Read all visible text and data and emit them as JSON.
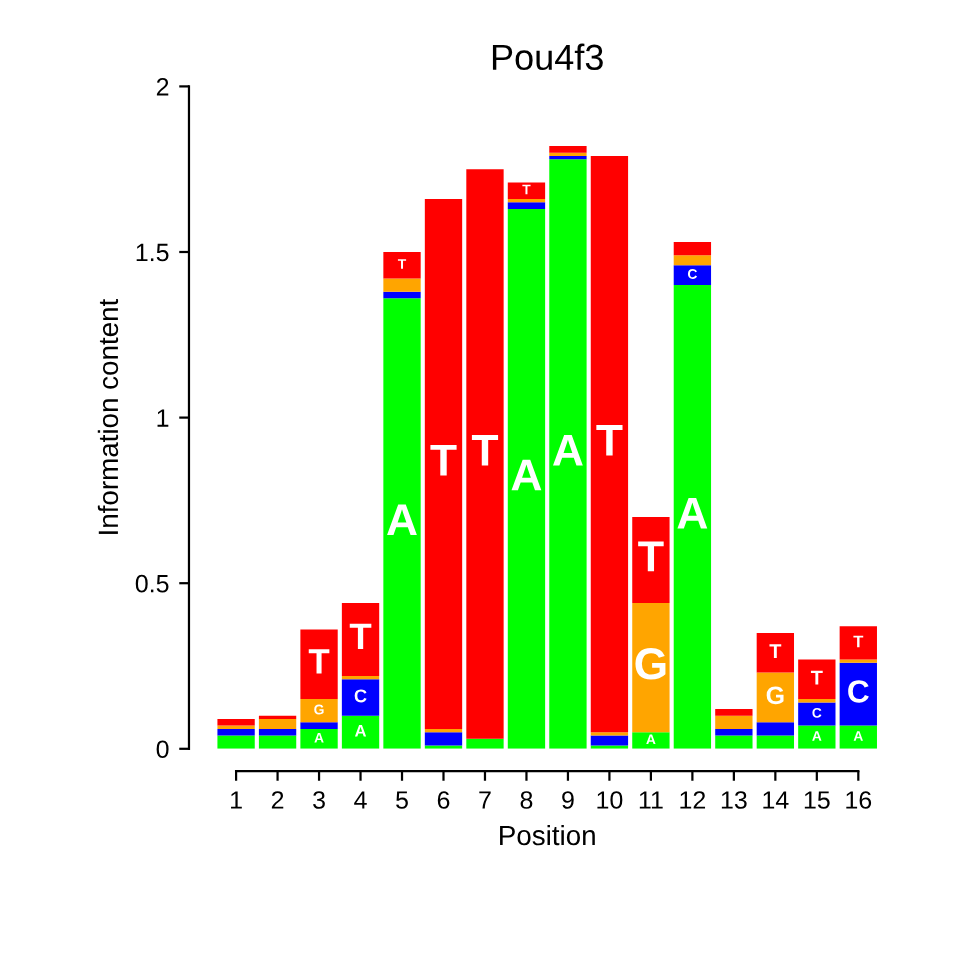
{
  "chart_data": {
    "type": "bar",
    "stacked": true,
    "title": "Pou4f3",
    "xlabel": "Position",
    "ylabel": "Information content",
    "categories": [
      "1",
      "2",
      "3",
      "4",
      "5",
      "6",
      "7",
      "8",
      "9",
      "10",
      "11",
      "12",
      "13",
      "14",
      "15",
      "16"
    ],
    "series": [
      {
        "name": "A",
        "color": "#00ff00",
        "values": [
          0.04,
          0.04,
          0.06,
          0.1,
          1.36,
          0.01,
          0.03,
          1.63,
          1.78,
          0.01,
          0.05,
          1.4,
          0.04,
          0.04,
          0.07,
          0.07
        ]
      },
      {
        "name": "C",
        "color": "#0000ff",
        "values": [
          0.02,
          0.02,
          0.02,
          0.11,
          0.02,
          0.04,
          0.0,
          0.02,
          0.01,
          0.03,
          0.0,
          0.06,
          0.02,
          0.04,
          0.07,
          0.19
        ]
      },
      {
        "name": "G",
        "color": "#ffa500",
        "values": [
          0.01,
          0.03,
          0.07,
          0.01,
          0.04,
          0.01,
          0.0,
          0.01,
          0.01,
          0.01,
          0.39,
          0.03,
          0.04,
          0.15,
          0.01,
          0.01
        ]
      },
      {
        "name": "T",
        "color": "#ff0000",
        "values": [
          0.02,
          0.01,
          0.21,
          0.22,
          0.08,
          1.6,
          1.72,
          0.05,
          0.02,
          1.74,
          0.26,
          0.04,
          0.02,
          0.12,
          0.12,
          0.1
        ]
      }
    ],
    "ylim": [
      0,
      2
    ],
    "yticks": [
      0,
      0.5,
      1,
      1.5,
      2
    ],
    "grid": false,
    "legend": false
  }
}
